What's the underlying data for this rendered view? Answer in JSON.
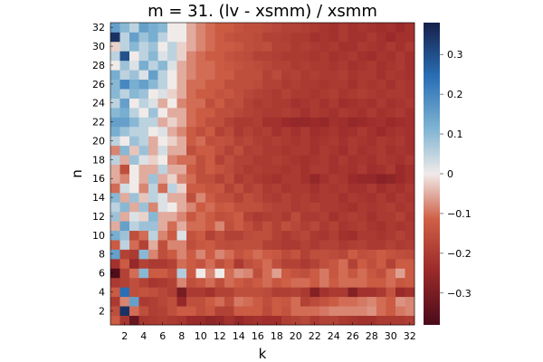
{
  "chart_data": {
    "type": "heatmap",
    "title": "m = 31. (lv - xsmm) / xsmm",
    "xlabel": "k",
    "ylabel": "n",
    "x_range": [
      1,
      32
    ],
    "y_range": [
      1,
      32
    ],
    "x_ticks": [
      2,
      4,
      6,
      8,
      10,
      12,
      14,
      16,
      18,
      20,
      22,
      24,
      26,
      28,
      30,
      32
    ],
    "y_ticks": [
      2,
      4,
      6,
      8,
      10,
      12,
      14,
      16,
      18,
      20,
      22,
      24,
      26,
      28,
      30,
      32
    ],
    "colorbar": {
      "range": [
        -0.38,
        0.38
      ],
      "ticks": [
        -0.3,
        -0.2,
        -0.1,
        0,
        0.1,
        0.2,
        0.3
      ],
      "tick_labels": [
        "−0.3",
        "−0.2",
        "−0.1",
        "0",
        "0.1",
        "0.2",
        "0.3"
      ]
    },
    "colors": {
      "negative_extreme": "#4a0b1a",
      "negative": "#c0402e",
      "zero": "#f0ebe9",
      "positive": "#6ba8cf",
      "positive_extreme": "#15204a"
    },
    "grid": false,
    "legend": "colorbar-right",
    "z_note": "values per (n,k) cell; n = row 1..32, k = column 1..32",
    "z": [
      [
        -0.12,
        -0.21,
        -0.33,
        -0.21,
        -0.2,
        -0.19,
        -0.2,
        -0.21,
        -0.24,
        -0.24,
        -0.26,
        -0.25,
        -0.22,
        -0.25,
        -0.23,
        -0.22,
        -0.23,
        -0.23,
        -0.19,
        -0.18,
        -0.17,
        -0.2,
        -0.18,
        -0.18,
        -0.2,
        -0.21,
        -0.22,
        -0.22,
        -0.2,
        -0.2,
        -0.2,
        -0.19
      ],
      [
        -0.15,
        0.35,
        -0.1,
        -0.15,
        -0.19,
        -0.18,
        -0.15,
        -0.12,
        -0.12,
        -0.15,
        -0.13,
        -0.18,
        -0.18,
        -0.12,
        -0.12,
        -0.12,
        -0.16,
        -0.12,
        -0.14,
        -0.1,
        -0.1,
        -0.1,
        -0.09,
        -0.08,
        -0.08,
        -0.08,
        -0.08,
        -0.07,
        -0.1,
        -0.12,
        -0.09,
        -0.08
      ],
      [
        -0.2,
        -0.08,
        0.15,
        -0.2,
        -0.19,
        -0.17,
        -0.15,
        -0.25,
        -0.15,
        -0.15,
        -0.12,
        -0.1,
        -0.15,
        -0.09,
        -0.1,
        -0.12,
        -0.15,
        -0.12,
        -0.13,
        -0.1,
        -0.18,
        -0.16,
        -0.14,
        -0.12,
        -0.1,
        -0.1,
        -0.09,
        -0.08,
        -0.1,
        -0.12,
        -0.07,
        -0.08
      ],
      [
        -0.12,
        0.25,
        -0.15,
        -0.14,
        -0.15,
        -0.17,
        -0.19,
        -0.3,
        -0.2,
        -0.2,
        -0.22,
        -0.18,
        -0.18,
        -0.15,
        -0.15,
        -0.15,
        -0.16,
        -0.19,
        -0.19,
        -0.18,
        -0.2,
        -0.28,
        -0.22,
        -0.2,
        -0.2,
        -0.28,
        -0.22,
        -0.22,
        -0.2,
        -0.14,
        -0.24,
        -0.22
      ],
      [
        -0.2,
        -0.18,
        -0.15,
        -0.18,
        -0.21,
        -0.2,
        -0.18,
        -0.08,
        -0.15,
        -0.13,
        -0.1,
        -0.15,
        -0.1,
        -0.12,
        -0.14,
        -0.12,
        -0.1,
        -0.13,
        -0.11,
        -0.1,
        -0.1,
        -0.12,
        -0.09,
        -0.12,
        -0.1,
        -0.1,
        -0.1,
        -0.12,
        -0.12,
        -0.1,
        -0.13,
        -0.12
      ],
      [
        -0.37,
        -0.18,
        -0.1,
        0.1,
        -0.12,
        -0.12,
        -0.15,
        0.06,
        -0.12,
        0.0,
        -0.08,
        0.0,
        -0.1,
        -0.07,
        -0.08,
        -0.15,
        -0.1,
        -0.06,
        -0.12,
        -0.14,
        -0.15,
        -0.12,
        -0.09,
        -0.13,
        -0.1,
        -0.13,
        -0.1,
        -0.13,
        -0.15,
        -0.1,
        -0.06,
        -0.12
      ],
      [
        -0.22,
        -0.12,
        -0.25,
        -0.18,
        -0.2,
        -0.2,
        -0.18,
        -0.1,
        -0.12,
        -0.14,
        -0.1,
        -0.15,
        -0.12,
        -0.2,
        -0.15,
        -0.13,
        -0.1,
        -0.15,
        -0.18,
        -0.18,
        -0.2,
        -0.18,
        -0.15,
        -0.13,
        -0.1,
        -0.18,
        -0.12,
        -0.15,
        -0.12,
        -0.18,
        -0.12,
        -0.12
      ],
      [
        0.15,
        -0.18,
        -0.2,
        0.1,
        -0.08,
        -0.15,
        -0.12,
        -0.08,
        -0.12,
        -0.08,
        -0.12,
        -0.08,
        -0.1,
        -0.14,
        -0.12,
        -0.1,
        -0.12,
        -0.13,
        -0.16,
        -0.14,
        -0.18,
        -0.15,
        -0.15,
        -0.16,
        -0.17,
        -0.12,
        -0.15,
        -0.14,
        -0.12,
        -0.14,
        -0.15,
        -0.16
      ],
      [
        -0.12,
        0.05,
        -0.1,
        -0.18,
        -0.05,
        -0.15,
        -0.08,
        -0.08,
        -0.15,
        -0.13,
        -0.12,
        -0.15,
        -0.16,
        -0.15,
        -0.15,
        -0.15,
        -0.18,
        -0.19,
        -0.2,
        -0.2,
        -0.18,
        -0.2,
        -0.18,
        -0.18,
        -0.2,
        -0.19,
        -0.18,
        -0.2,
        -0.2,
        -0.18,
        -0.2,
        -0.19
      ],
      [
        0.12,
        0.08,
        -0.15,
        -0.1,
        0.05,
        -0.08,
        -0.12,
        0.02,
        -0.14,
        -0.12,
        -0.18,
        -0.15,
        -0.18,
        -0.18,
        -0.16,
        -0.15,
        -0.15,
        -0.18,
        -0.2,
        -0.18,
        -0.17,
        -0.2,
        -0.21,
        -0.19,
        -0.22,
        -0.23,
        -0.2,
        -0.2,
        -0.21,
        -0.2,
        -0.18,
        -0.2
      ],
      [
        -0.05,
        0.15,
        0.05,
        0.08,
        0.08,
        -0.05,
        -0.1,
        -0.05,
        -0.1,
        -0.1,
        -0.12,
        -0.08,
        -0.15,
        -0.12,
        -0.15,
        -0.18,
        -0.15,
        -0.18,
        -0.15,
        -0.17,
        -0.19,
        -0.17,
        -0.2,
        -0.18,
        -0.21,
        -0.2,
        -0.19,
        -0.21,
        -0.22,
        -0.2,
        -0.21,
        -0.2
      ],
      [
        0.08,
        -0.05,
        0.02,
        -0.02,
        0.1,
        -0.05,
        -0.05,
        -0.08,
        -0.13,
        -0.1,
        -0.12,
        -0.15,
        -0.14,
        -0.12,
        -0.18,
        -0.2,
        -0.19,
        -0.18,
        -0.2,
        -0.16,
        -0.2,
        -0.2,
        -0.19,
        -0.22,
        -0.2,
        -0.19,
        -0.2,
        -0.22,
        -0.2,
        -0.2,
        -0.18,
        -0.21
      ],
      [
        0.05,
        0.1,
        -0.05,
        0.08,
        -0.08,
        0.02,
        0.0,
        -0.05,
        -0.08,
        -0.12,
        -0.1,
        -0.13,
        -0.12,
        -0.15,
        -0.15,
        -0.15,
        -0.17,
        -0.18,
        -0.18,
        -0.2,
        -0.19,
        -0.18,
        -0.2,
        -0.2,
        -0.21,
        -0.22,
        -0.2,
        -0.21,
        -0.2,
        -0.19,
        -0.21,
        -0.2
      ],
      [
        0.1,
        -0.05,
        0.08,
        -0.03,
        0.05,
        0.02,
        -0.05,
        -0.05,
        -0.15,
        -0.08,
        -0.12,
        -0.15,
        -0.15,
        -0.18,
        -0.15,
        -0.17,
        -0.19,
        -0.2,
        -0.18,
        -0.2,
        -0.19,
        -0.21,
        -0.2,
        -0.2,
        -0.22,
        -0.2,
        -0.21,
        -0.22,
        -0.2,
        -0.22,
        -0.2,
        -0.21
      ],
      [
        -0.1,
        0.03,
        0.0,
        -0.08,
        0.05,
        -0.1,
        0.05,
        -0.02,
        -0.12,
        -0.12,
        -0.14,
        -0.13,
        -0.18,
        -0.15,
        -0.19,
        -0.17,
        -0.2,
        -0.19,
        -0.21,
        -0.2,
        -0.2,
        -0.22,
        -0.2,
        -0.21,
        -0.2,
        -0.22,
        -0.22,
        -0.2,
        -0.23,
        -0.21,
        -0.22,
        -0.2
      ],
      [
        -0.05,
        -0.08,
        0.0,
        -0.05,
        0.08,
        -0.05,
        -0.02,
        -0.08,
        -0.1,
        -0.15,
        -0.15,
        -0.18,
        -0.15,
        -0.2,
        -0.18,
        -0.2,
        -0.21,
        -0.22,
        -0.2,
        -0.2,
        -0.22,
        -0.25,
        -0.22,
        -0.2,
        -0.21,
        -0.24,
        -0.25,
        -0.25,
        -0.27,
        -0.26,
        -0.24,
        -0.22
      ],
      [
        -0.05,
        -0.15,
        0.0,
        -0.05,
        -0.05,
        0.05,
        -0.05,
        -0.05,
        -0.12,
        -0.15,
        -0.12,
        -0.14,
        -0.16,
        -0.18,
        -0.2,
        -0.19,
        -0.2,
        -0.2,
        -0.21,
        -0.2,
        -0.22,
        -0.2,
        -0.2,
        -0.22,
        -0.21,
        -0.22,
        -0.2,
        -0.23,
        -0.22,
        -0.2,
        -0.24,
        -0.22
      ],
      [
        0.05,
        -0.05,
        0.08,
        0.02,
        -0.02,
        0.0,
        -0.08,
        -0.1,
        -0.1,
        -0.15,
        -0.12,
        -0.18,
        -0.15,
        -0.18,
        -0.18,
        -0.2,
        -0.2,
        -0.19,
        -0.2,
        -0.21,
        -0.22,
        -0.21,
        -0.2,
        -0.22,
        -0.2,
        -0.22,
        -0.21,
        -0.22,
        -0.2,
        -0.21,
        -0.22,
        -0.2
      ],
      [
        -0.08,
        0.1,
        -0.03,
        0.08,
        -0.05,
        0.03,
        -0.05,
        -0.05,
        -0.15,
        -0.12,
        -0.12,
        -0.15,
        -0.18,
        -0.15,
        -0.19,
        -0.18,
        -0.2,
        -0.2,
        -0.21,
        -0.2,
        -0.2,
        -0.22,
        -0.2,
        -0.21,
        -0.23,
        -0.2,
        -0.22,
        -0.21,
        -0.2,
        -0.22,
        -0.21,
        -0.22
      ],
      [
        0.05,
        0.0,
        0.08,
        0.05,
        -0.05,
        0.0,
        -0.02,
        -0.05,
        -0.12,
        -0.1,
        -0.15,
        -0.14,
        -0.15,
        -0.18,
        -0.17,
        -0.19,
        -0.2,
        -0.19,
        -0.2,
        -0.21,
        -0.2,
        -0.22,
        -0.21,
        -0.2,
        -0.22,
        -0.2,
        -0.21,
        -0.22,
        -0.2,
        -0.21,
        -0.2,
        -0.22
      ],
      [
        0.12,
        0.08,
        0.05,
        0.05,
        0.0,
        0.02,
        -0.05,
        -0.08,
        -0.12,
        -0.15,
        -0.12,
        -0.18,
        -0.16,
        -0.2,
        -0.18,
        -0.2,
        -0.19,
        -0.22,
        -0.2,
        -0.22,
        -0.2,
        -0.23,
        -0.22,
        -0.21,
        -0.23,
        -0.22,
        -0.2,
        -0.22,
        -0.24,
        -0.22,
        -0.21,
        -0.22
      ],
      [
        0.15,
        0.15,
        0.1,
        0.05,
        0.05,
        -0.05,
        -0.02,
        -0.05,
        -0.1,
        -0.12,
        -0.15,
        -0.15,
        -0.18,
        -0.2,
        -0.2,
        -0.19,
        -0.22,
        -0.22,
        -0.24,
        -0.25,
        -0.25,
        -0.24,
        -0.25,
        -0.22,
        -0.23,
        -0.25,
        -0.24,
        -0.23,
        -0.22,
        -0.24,
        -0.23,
        -0.22
      ],
      [
        0.1,
        0.12,
        0.05,
        0.0,
        0.08,
        0.0,
        -0.05,
        -0.05,
        -0.1,
        -0.12,
        -0.12,
        -0.15,
        -0.15,
        -0.17,
        -0.18,
        -0.19,
        -0.2,
        -0.2,
        -0.19,
        -0.2,
        -0.22,
        -0.2,
        -0.21,
        -0.22,
        -0.2,
        -0.21,
        -0.22,
        -0.2,
        -0.22,
        -0.21,
        -0.2,
        -0.22
      ],
      [
        0.05,
        0.15,
        0.0,
        0.05,
        0.02,
        -0.05,
        0.0,
        -0.08,
        -0.1,
        -0.1,
        -0.15,
        -0.12,
        -0.16,
        -0.15,
        -0.18,
        -0.2,
        -0.19,
        -0.2,
        -0.2,
        -0.22,
        -0.21,
        -0.2,
        -0.22,
        -0.2,
        -0.23,
        -0.22,
        -0.21,
        -0.22,
        -0.2,
        -0.22,
        -0.21,
        -0.2
      ],
      [
        0.1,
        0.05,
        0.1,
        0.08,
        0.0,
        0.02,
        -0.02,
        -0.05,
        -0.1,
        -0.12,
        -0.12,
        -0.14,
        -0.13,
        -0.15,
        -0.17,
        -0.18,
        -0.19,
        -0.2,
        -0.18,
        -0.2,
        -0.2,
        -0.21,
        -0.2,
        -0.19,
        -0.21,
        -0.2,
        -0.19,
        -0.2,
        -0.21,
        -0.2,
        -0.2,
        -0.21
      ],
      [
        0.1,
        0.2,
        0.12,
        0.15,
        0.1,
        0.05,
        0.0,
        -0.05,
        -0.1,
        -0.1,
        -0.12,
        -0.12,
        -0.15,
        -0.15,
        -0.15,
        -0.16,
        -0.18,
        -0.18,
        -0.2,
        -0.19,
        -0.2,
        -0.2,
        -0.21,
        -0.2,
        -0.2,
        -0.22,
        -0.2,
        -0.21,
        -0.2,
        -0.22,
        -0.2,
        -0.21
      ],
      [
        0.12,
        0.05,
        0.08,
        0.02,
        0.15,
        0.05,
        0.0,
        -0.05,
        -0.08,
        -0.1,
        -0.1,
        -0.12,
        -0.12,
        -0.15,
        -0.15,
        -0.15,
        -0.18,
        -0.16,
        -0.19,
        -0.18,
        -0.2,
        -0.19,
        -0.2,
        -0.2,
        -0.19,
        -0.21,
        -0.2,
        -0.2,
        -0.22,
        -0.2,
        -0.21,
        -0.22
      ],
      [
        0.0,
        0.08,
        0.02,
        0.12,
        0.05,
        0.1,
        0.02,
        -0.05,
        -0.08,
        -0.1,
        -0.1,
        -0.12,
        -0.13,
        -0.14,
        -0.15,
        -0.16,
        -0.17,
        -0.18,
        -0.18,
        -0.2,
        -0.19,
        -0.2,
        -0.2,
        -0.21,
        -0.2,
        -0.22,
        -0.21,
        -0.2,
        -0.22,
        -0.21,
        -0.2,
        -0.22
      ],
      [
        0.05,
        0.3,
        0.0,
        0.05,
        0.1,
        0.02,
        0.05,
        -0.02,
        -0.08,
        -0.1,
        -0.12,
        -0.12,
        -0.14,
        -0.15,
        -0.16,
        -0.18,
        -0.18,
        -0.19,
        -0.2,
        -0.2,
        -0.2,
        -0.21,
        -0.2,
        -0.22,
        -0.21,
        -0.2,
        -0.22,
        -0.23,
        -0.21,
        -0.22,
        -0.2,
        -0.22
      ],
      [
        -0.02,
        0.05,
        0.1,
        0.05,
        0.08,
        0.0,
        0.05,
        -0.02,
        -0.05,
        -0.08,
        -0.1,
        -0.12,
        -0.12,
        -0.13,
        -0.15,
        -0.16,
        -0.15,
        -0.18,
        -0.18,
        -0.2,
        -0.19,
        -0.2,
        -0.21,
        -0.2,
        -0.22,
        -0.22,
        -0.2,
        -0.21,
        -0.22,
        -0.2,
        -0.22,
        -0.2
      ],
      [
        0.35,
        0.05,
        0.15,
        0.08,
        0.12,
        0.05,
        0.0,
        0.0,
        -0.05,
        -0.08,
        -0.1,
        -0.12,
        -0.14,
        -0.15,
        -0.15,
        -0.16,
        -0.18,
        -0.18,
        -0.19,
        -0.2,
        -0.2,
        -0.22,
        -0.21,
        -0.22,
        -0.2,
        -0.22,
        -0.22,
        -0.2,
        -0.22,
        -0.24,
        -0.22,
        -0.22
      ],
      [
        0.15,
        0.1,
        0.05,
        0.15,
        0.12,
        0.1,
        0.0,
        0.0,
        -0.05,
        -0.08,
        -0.1,
        -0.12,
        -0.12,
        -0.14,
        -0.15,
        -0.15,
        -0.16,
        -0.17,
        -0.18,
        -0.18,
        -0.19,
        -0.2,
        -0.21,
        -0.22,
        -0.2,
        -0.22,
        -0.21,
        -0.22,
        -0.23,
        -0.22,
        -0.24,
        -0.22
      ]
    ]
  }
}
